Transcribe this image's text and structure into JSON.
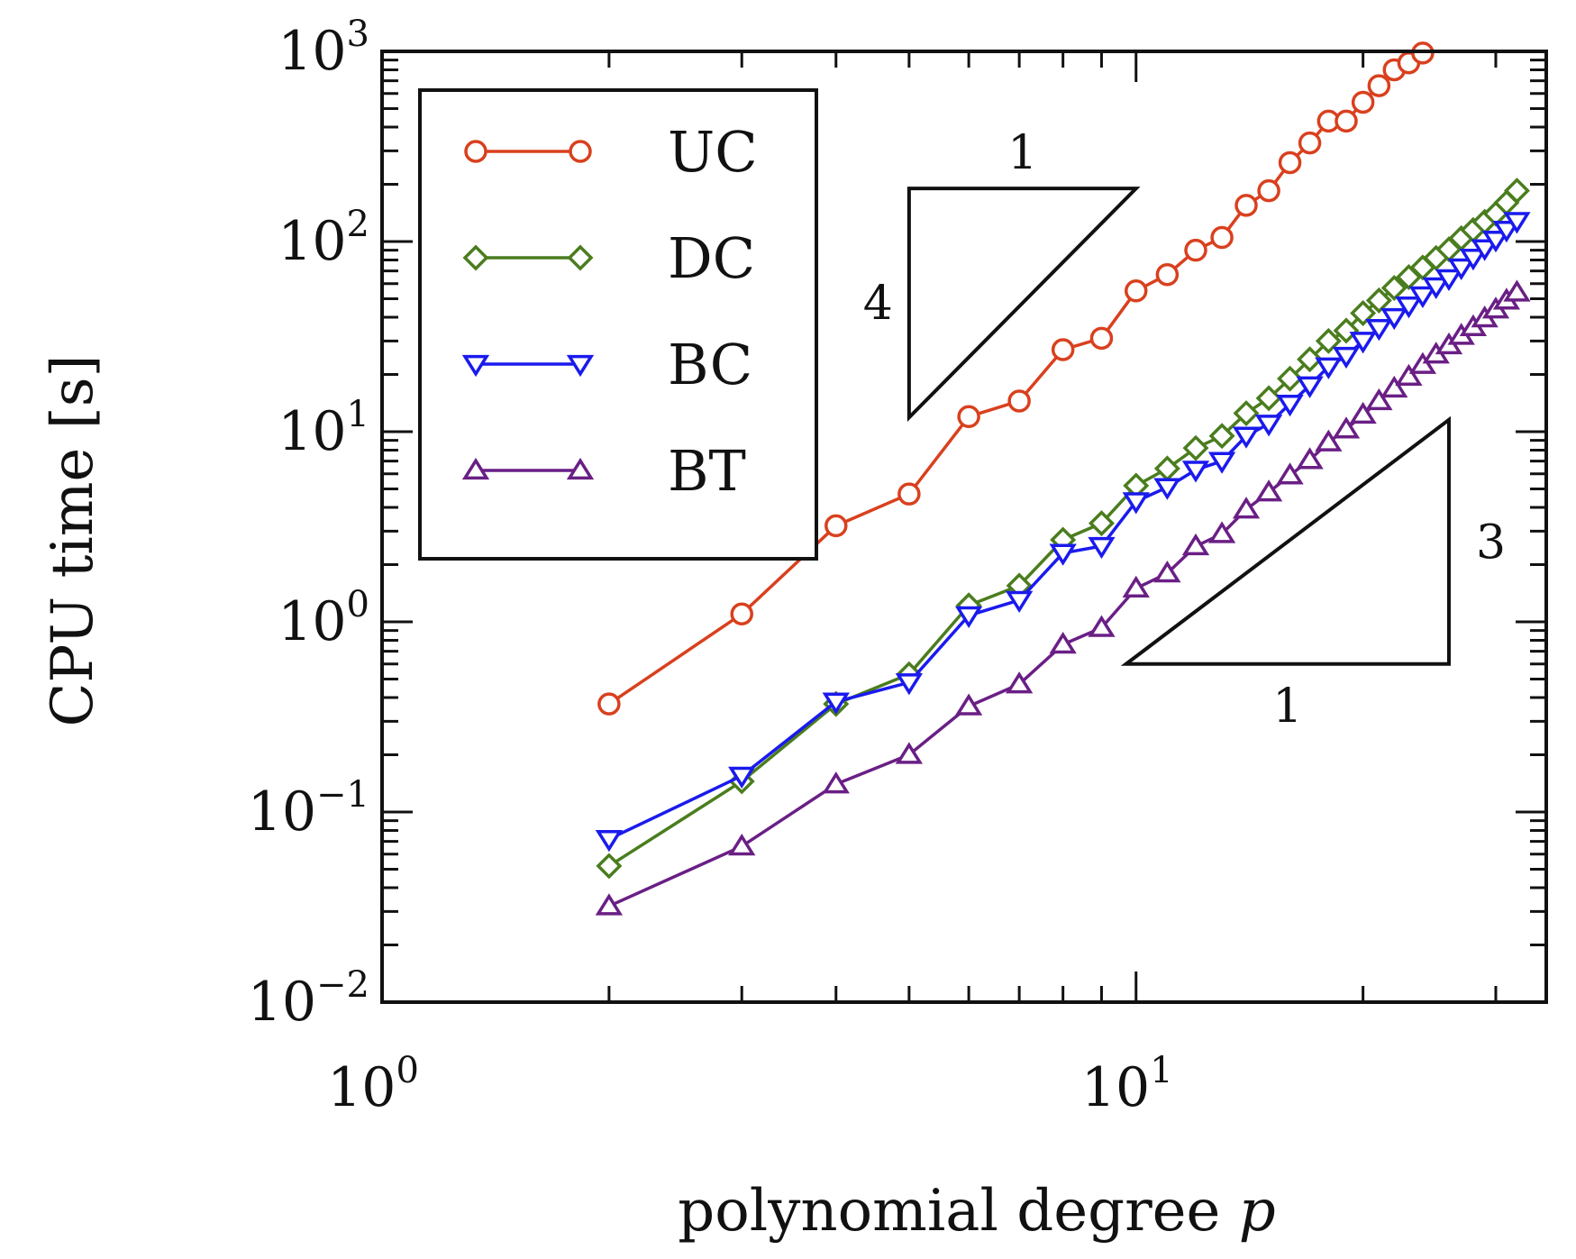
{
  "chart_data": {
    "type": "line",
    "xlabel": "polynomial degree",
    "xlabel_var": "p",
    "ylabel": "CPU time [s]",
    "xscale": "log",
    "yscale": "log",
    "xlim": [
      1,
      35
    ],
    "ylim": [
      0.01,
      1000
    ],
    "x_ticks": [
      {
        "value": 1,
        "base": "10",
        "exp": "0"
      },
      {
        "value": 10,
        "base": "10",
        "exp": "1"
      }
    ],
    "y_ticks": [
      {
        "value": 0.01,
        "base": "10",
        "exp": "−2"
      },
      {
        "value": 0.1,
        "base": "10",
        "exp": "−1"
      },
      {
        "value": 1,
        "base": "10",
        "exp": "0"
      },
      {
        "value": 10,
        "base": "10",
        "exp": "1"
      },
      {
        "value": 100,
        "base": "10",
        "exp": "2"
      },
      {
        "value": 1000,
        "base": "10",
        "exp": "3"
      }
    ],
    "legend_position": "top-left",
    "series": [
      {
        "name": "UC",
        "color": "#d9401e",
        "marker": "circle",
        "x": [
          2,
          3,
          4,
          5,
          6,
          7,
          8,
          9,
          10,
          11,
          12,
          13,
          14,
          15,
          16,
          17,
          18,
          19,
          20,
          21,
          22,
          23,
          24
        ],
        "y": [
          0.37,
          1.1,
          3.2,
          4.7,
          12,
          14.5,
          27,
          31,
          55,
          67,
          90,
          105,
          155,
          185,
          260,
          330,
          430,
          430,
          540,
          660,
          800,
          870,
          980
        ]
      },
      {
        "name": "DC",
        "color": "#4a7d1e",
        "marker": "diamond",
        "x": [
          2,
          3,
          4,
          5,
          6,
          7,
          8,
          9,
          10,
          11,
          12,
          13,
          14,
          15,
          16,
          17,
          18,
          19,
          20,
          21,
          22,
          23,
          24,
          25,
          26,
          27,
          28,
          29,
          30,
          31,
          32
        ],
        "y": [
          0.052,
          0.145,
          0.37,
          0.53,
          1.22,
          1.55,
          2.7,
          3.3,
          5.2,
          6.4,
          8.2,
          9.5,
          12.5,
          15,
          19,
          24,
          30,
          34,
          42,
          49,
          57,
          65,
          73,
          82,
          91,
          104,
          115,
          127,
          140,
          160,
          185
        ]
      },
      {
        "name": "BC",
        "color": "#1a1aee",
        "marker": "triangle-down",
        "x": [
          2,
          3,
          4,
          5,
          6,
          7,
          8,
          9,
          10,
          11,
          12,
          13,
          14,
          15,
          16,
          17,
          18,
          19,
          20,
          21,
          22,
          23,
          24,
          25,
          26,
          27,
          28,
          29,
          30,
          31,
          32
        ],
        "y": [
          0.072,
          0.155,
          0.38,
          0.48,
          1.08,
          1.3,
          2.3,
          2.5,
          4.3,
          5.1,
          6.3,
          7,
          9.5,
          11,
          14,
          17.5,
          22,
          25,
          30,
          35,
          40,
          46,
          52,
          58,
          64,
          73,
          82,
          92,
          102,
          115,
          128
        ]
      },
      {
        "name": "BT",
        "color": "#6a1f85",
        "marker": "triangle-up",
        "x": [
          2,
          3,
          4,
          5,
          6,
          7,
          8,
          9,
          10,
          11,
          12,
          13,
          14,
          15,
          16,
          17,
          18,
          19,
          20,
          21,
          22,
          23,
          24,
          25,
          26,
          27,
          28,
          29,
          30,
          31,
          32
        ],
        "y": [
          0.032,
          0.066,
          0.14,
          0.2,
          0.36,
          0.47,
          0.76,
          0.93,
          1.5,
          1.8,
          2.5,
          2.9,
          3.9,
          4.8,
          5.9,
          7.1,
          8.8,
          10.3,
          12.3,
          14.5,
          16.9,
          19.5,
          22.5,
          25.5,
          28.5,
          32,
          35.5,
          39.5,
          44,
          49,
          54
        ]
      }
    ],
    "annotations": [
      {
        "type": "slope-triangle",
        "orientation": "upper",
        "run_label": "1",
        "rise_label": "4",
        "x_from": 5,
        "x_to": 10,
        "y_at": 190,
        "slope": 4
      },
      {
        "type": "slope-triangle",
        "orientation": "lower",
        "run_label": "1",
        "rise_label": "3",
        "x_from": 9.7,
        "x_to": 26,
        "y_at": 0.6,
        "slope": 3
      }
    ]
  }
}
